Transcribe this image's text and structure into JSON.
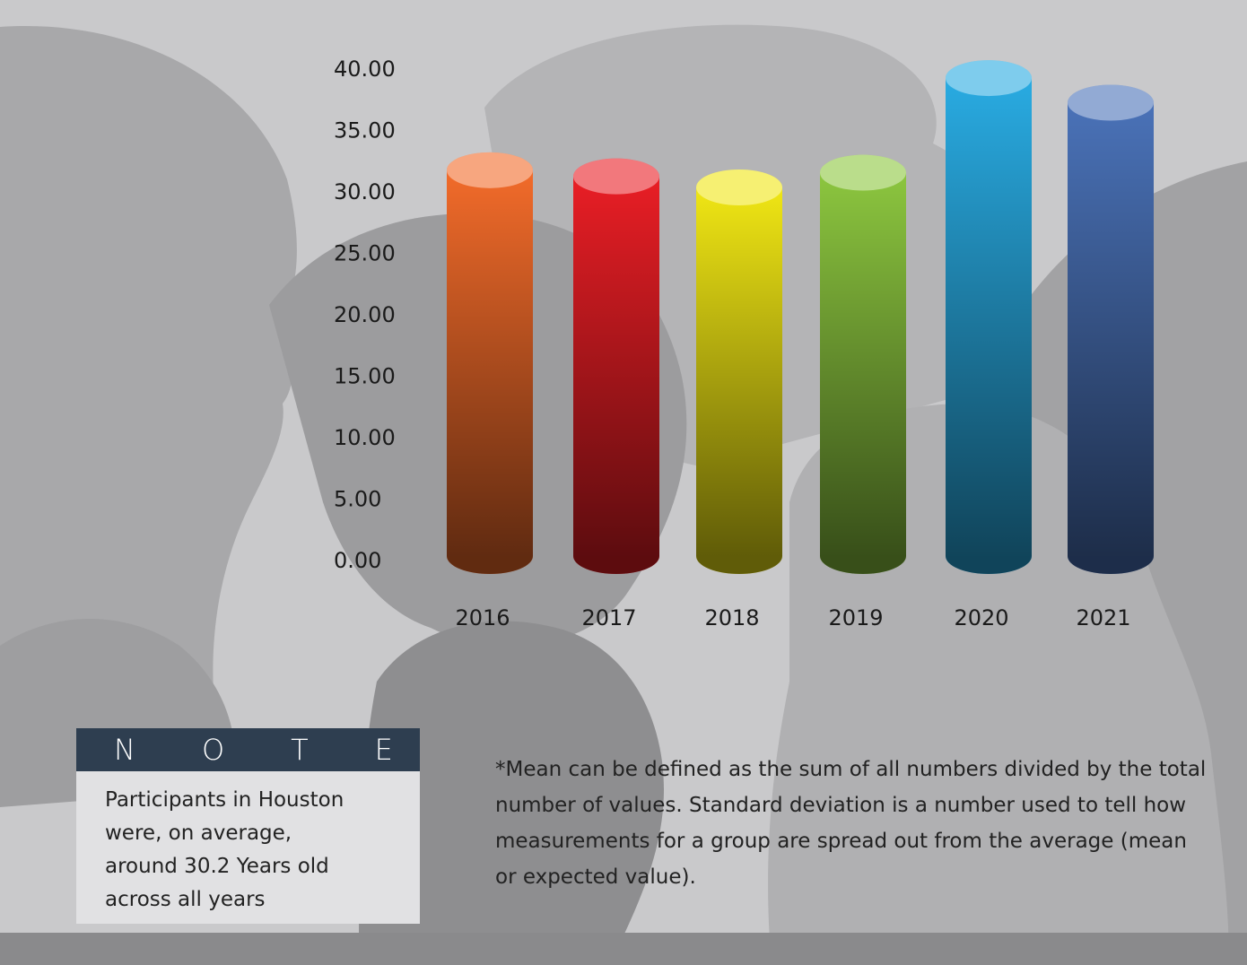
{
  "chart_data": {
    "type": "cylinder-bar",
    "categories": [
      "2016",
      "2017",
      "2018",
      "2019",
      "2020",
      "2021"
    ],
    "values": [
      31.4,
      30.9,
      30.0,
      31.2,
      38.9,
      36.9
    ],
    "colors": [
      "#f26b2a",
      "#e91e25",
      "#f0e614",
      "#8cc63f",
      "#29abe2",
      "#4a72b8"
    ],
    "ylim": [
      0,
      40
    ],
    "yticks": [
      {
        "value": 0,
        "label": "0.00"
      },
      {
        "value": 5,
        "label": "5.00"
      },
      {
        "value": 10,
        "label": "10.00"
      },
      {
        "value": 15,
        "label": "15.00"
      },
      {
        "value": 20,
        "label": "20.00"
      },
      {
        "value": 25,
        "label": "25.00"
      },
      {
        "value": 30,
        "label": "30.00"
      },
      {
        "value": 35,
        "label": "35.00"
      },
      {
        "value": 40,
        "label": "40.00"
      }
    ],
    "grid": false
  },
  "note": {
    "title": "NOTE",
    "lines": [
      "Participants in Houston",
      "were, on average,",
      "around 30.2 Years old",
      "across all years"
    ]
  },
  "footnote": {
    "lines": [
      "*Mean can be defined as the sum of all numbers divided by the total",
      "number of values. Standard deviation is a number used to tell how",
      "measurements for a group are spread out from the average (mean",
      "or expected value)."
    ]
  }
}
